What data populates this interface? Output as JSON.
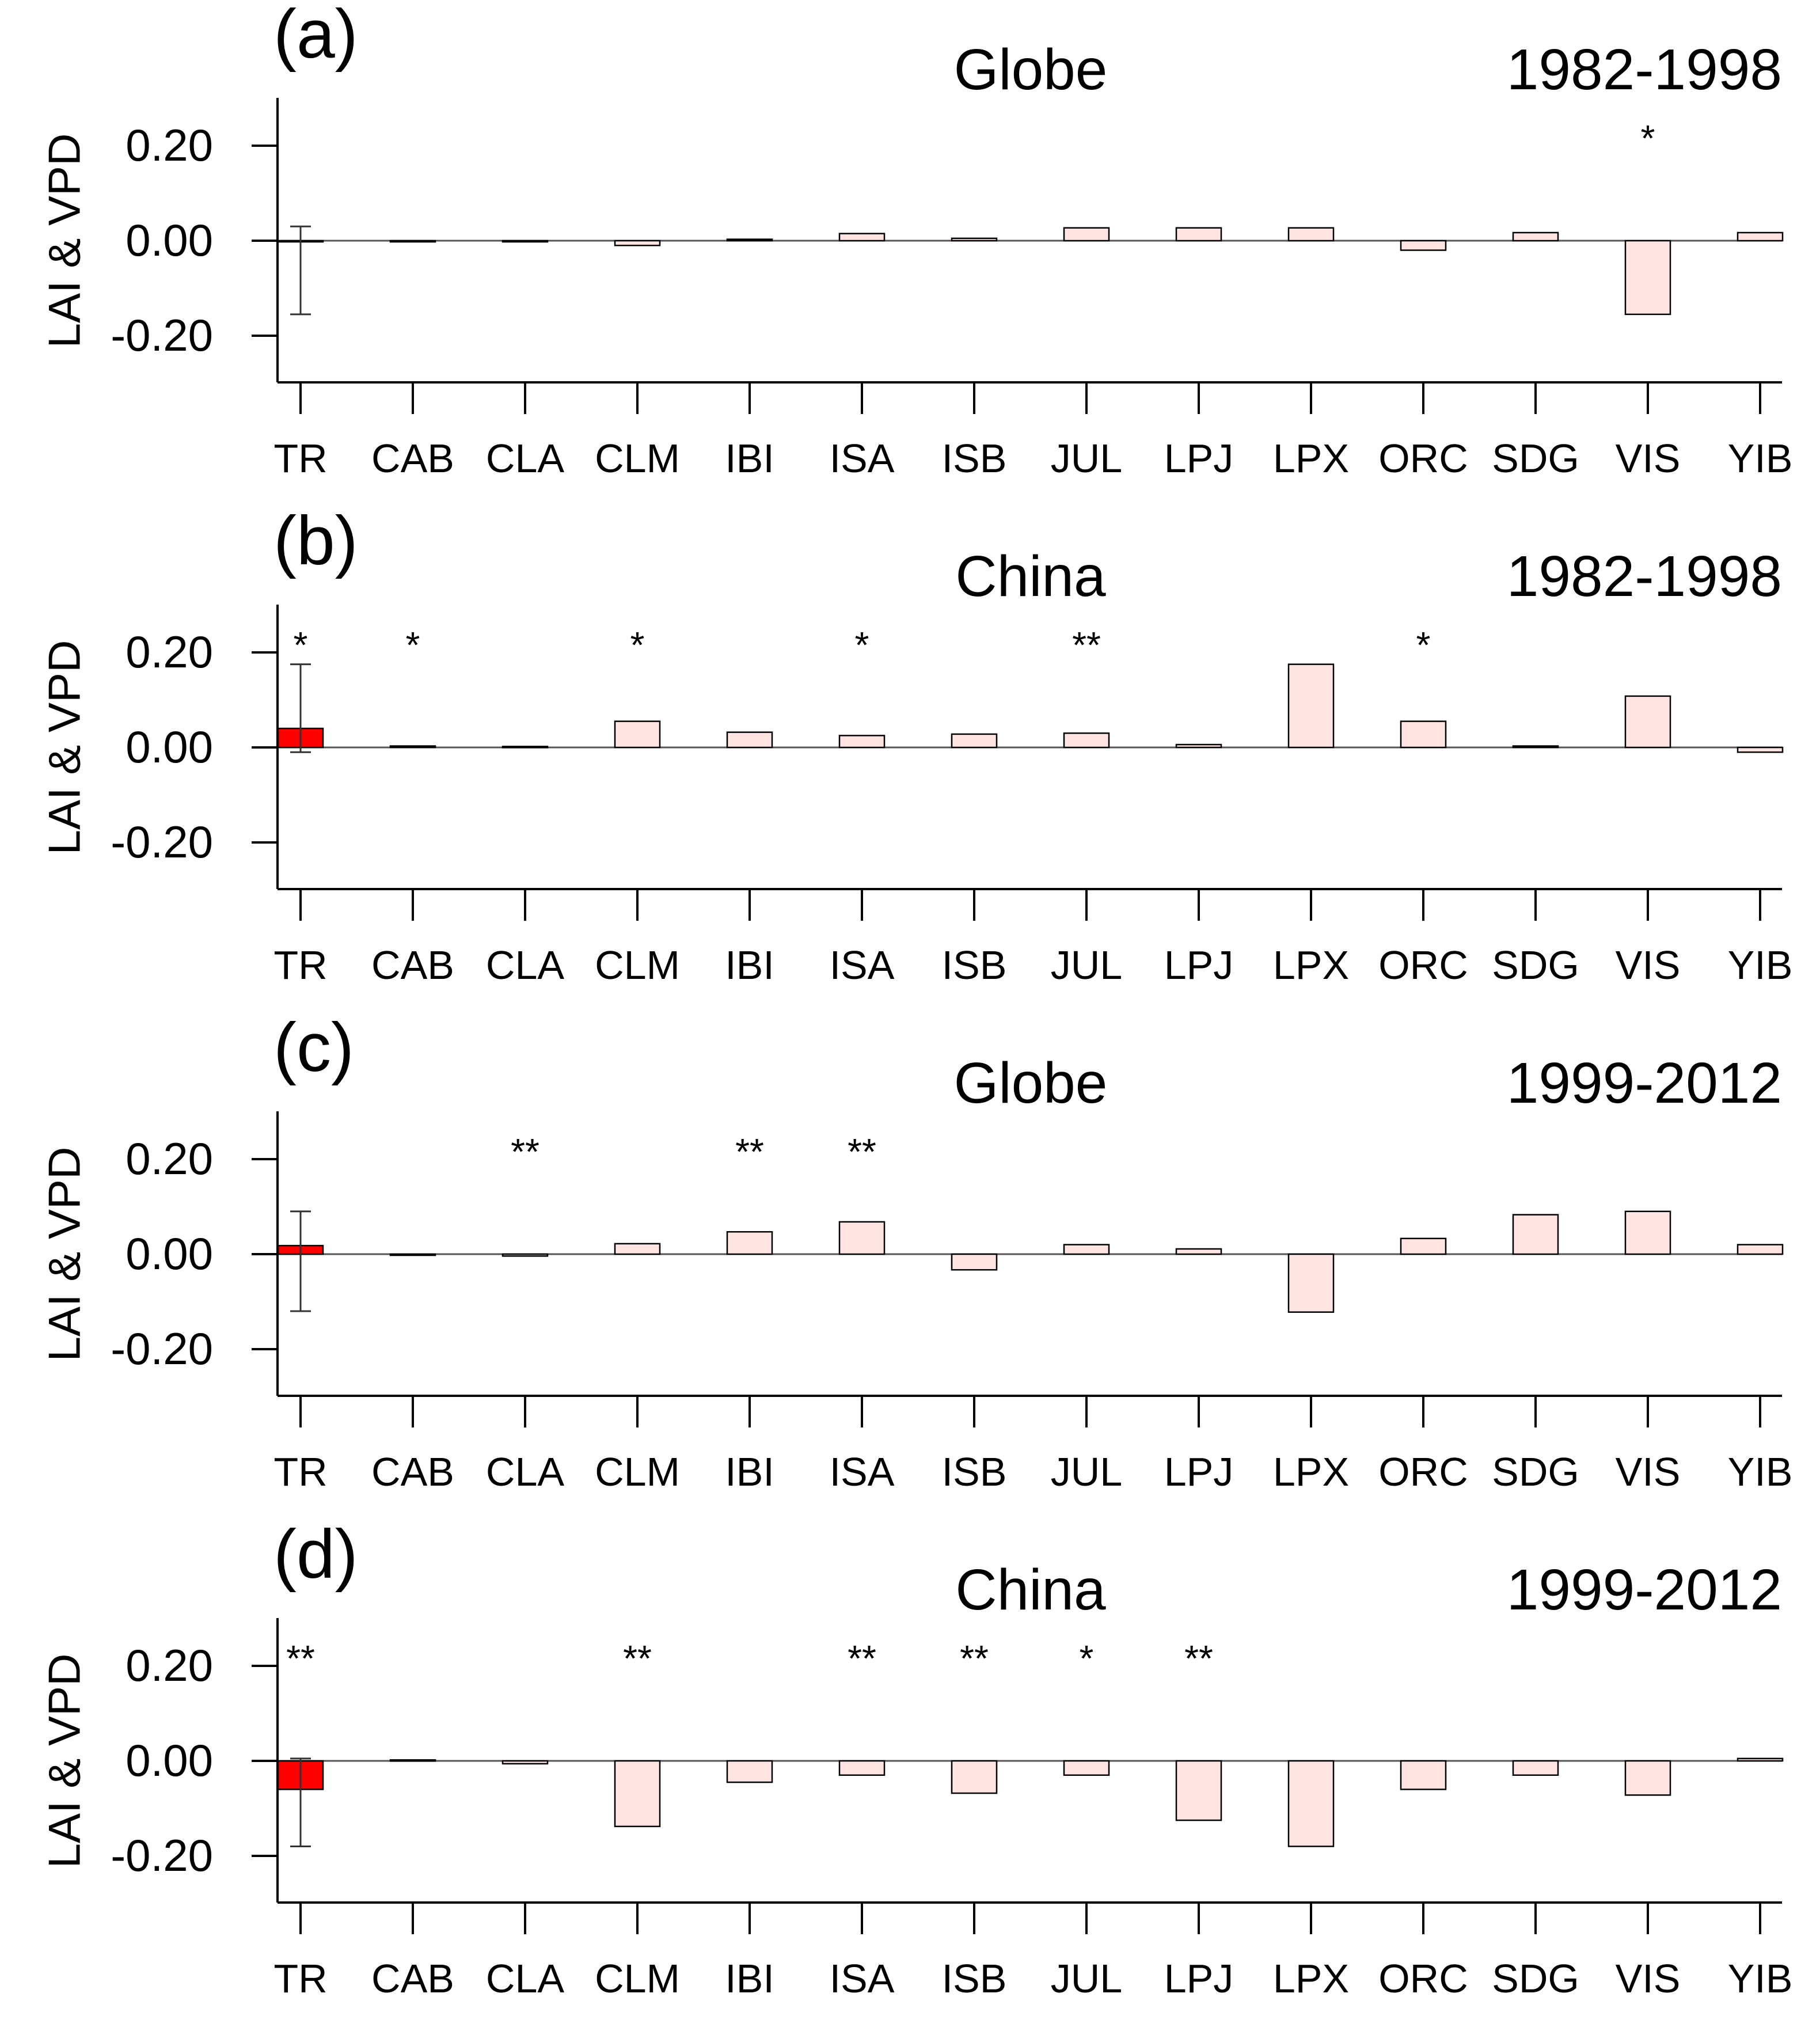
{
  "chart_data": [
    {
      "type": "bar",
      "panel_label": "(a)",
      "title": "Globe",
      "period": "1982-1998",
      "ylabel": "LAI & VPD",
      "ylim": [
        -0.3,
        0.3
      ],
      "yticks": [
        0.2,
        0.0,
        -0.2
      ],
      "ytick_labels": [
        "0.20",
        "0.00",
        "-0.20"
      ],
      "categories": [
        "TR",
        "CAB",
        "CLA",
        "CLM",
        "IBI",
        "ISA",
        "ISB",
        "JUL",
        "LPJ",
        "LPX",
        "ORC",
        "SDG",
        "VIS",
        "YIB"
      ],
      "values": [
        0.0,
        -0.002,
        -0.001,
        -0.01,
        0.003,
        0.015,
        0.005,
        0.027,
        0.027,
        0.027,
        -0.02,
        0.017,
        -0.155,
        0.017
      ],
      "significance": [
        "",
        "",
        "",
        "",
        "",
        "",
        "",
        "",
        "",
        "",
        "",
        "",
        "*",
        ""
      ],
      "error_bar": {
        "category": "TR",
        "low": -0.155,
        "high": 0.03
      },
      "colors": {
        "observed": "#ff0000",
        "models": "#ffe4e1",
        "edge": "#000000"
      }
    },
    {
      "type": "bar",
      "panel_label": "(b)",
      "title": "China",
      "period": "1982-1998",
      "ylabel": "LAI & VPD",
      "ylim": [
        -0.3,
        0.3
      ],
      "yticks": [
        0.2,
        0.0,
        -0.2
      ],
      "ytick_labels": [
        "0.20",
        "0.00",
        "-0.20"
      ],
      "categories": [
        "TR",
        "CAB",
        "CLA",
        "CLM",
        "IBI",
        "ISA",
        "ISB",
        "JUL",
        "LPJ",
        "LPX",
        "ORC",
        "SDG",
        "VIS",
        "YIB"
      ],
      "values": [
        0.04,
        0.003,
        0.002,
        0.055,
        0.032,
        0.025,
        0.028,
        0.03,
        0.006,
        0.175,
        0.055,
        0.003,
        0.108,
        -0.01
      ],
      "significance": [
        "*",
        "*",
        "",
        "*",
        "",
        "*",
        "",
        "**",
        "",
        "",
        "*",
        "",
        "",
        ""
      ],
      "error_bar": {
        "category": "TR",
        "low": -0.01,
        "high": 0.175
      },
      "colors": {
        "observed": "#ff0000",
        "models": "#ffe4e1",
        "edge": "#000000"
      }
    },
    {
      "type": "bar",
      "panel_label": "(c)",
      "title": "Globe",
      "period": "1999-2012",
      "ylabel": "LAI & VPD",
      "ylim": [
        -0.3,
        0.3
      ],
      "yticks": [
        0.2,
        0.0,
        -0.2
      ],
      "ytick_labels": [
        "0.20",
        "0.00",
        "-0.20"
      ],
      "categories": [
        "TR",
        "CAB",
        "CLA",
        "CLM",
        "IBI",
        "ISA",
        "ISB",
        "JUL",
        "LPJ",
        "LPX",
        "ORC",
        "SDG",
        "VIS",
        "YIB"
      ],
      "values": [
        0.018,
        -0.001,
        -0.004,
        0.022,
        0.047,
        0.068,
        -0.033,
        0.02,
        0.011,
        -0.122,
        0.033,
        0.083,
        0.09,
        0.02
      ],
      "significance": [
        "",
        "",
        "**",
        "",
        "**",
        "**",
        "",
        "",
        "",
        "",
        "",
        "",
        "",
        ""
      ],
      "error_bar": {
        "category": "TR",
        "low": -0.12,
        "high": 0.09
      },
      "colors": {
        "observed": "#ff0000",
        "models": "#ffe4e1",
        "edge": "#000000"
      }
    },
    {
      "type": "bar",
      "panel_label": "(d)",
      "title": "China",
      "period": "1999-2012",
      "ylabel": "LAI & VPD",
      "ylim": [
        -0.3,
        0.3
      ],
      "yticks": [
        0.2,
        0.0,
        -0.2
      ],
      "ytick_labels": [
        "0.20",
        "0.00",
        "-0.20"
      ],
      "categories": [
        "TR",
        "CAB",
        "CLA",
        "CLM",
        "IBI",
        "ISA",
        "ISB",
        "JUL",
        "LPJ",
        "LPX",
        "ORC",
        "SDG",
        "VIS",
        "YIB"
      ],
      "values": [
        -0.06,
        0.002,
        -0.006,
        -0.138,
        -0.045,
        -0.03,
        -0.068,
        -0.03,
        -0.125,
        -0.18,
        -0.06,
        -0.03,
        -0.072,
        0.005
      ],
      "significance": [
        "**",
        "",
        "",
        "**",
        "",
        "**",
        "**",
        "*",
        "**",
        "",
        "",
        "",
        "",
        ""
      ],
      "error_bar": {
        "category": "TR",
        "low": -0.18,
        "high": 0.005
      },
      "colors": {
        "observed": "#ff0000",
        "models": "#ffe4e1",
        "edge": "#000000"
      }
    }
  ]
}
